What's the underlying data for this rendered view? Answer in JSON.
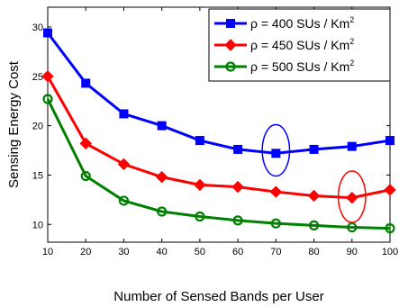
{
  "chart_data": {
    "type": "line",
    "title": "",
    "xlabel": "Number of Sensed Bands per User",
    "ylabel": "Sensing Energy Cost",
    "x": [
      10,
      20,
      30,
      40,
      50,
      60,
      70,
      80,
      90,
      100
    ],
    "xlim": [
      10,
      100
    ],
    "ylim": [
      8.2,
      32
    ],
    "xticks": [
      "10",
      "20",
      "30",
      "40",
      "50",
      "60",
      "70",
      "80",
      "90",
      "100"
    ],
    "yticks": [
      "10",
      "15",
      "20",
      "25",
      "30"
    ],
    "grid": false,
    "legend_position": "top-right",
    "series": [
      {
        "name_prefix": "ρ = 400 SUs / Km",
        "name_sup": "2",
        "color": "#0000ff",
        "marker": "square",
        "values": [
          29.4,
          24.3,
          21.2,
          20.0,
          18.5,
          17.6,
          17.2,
          17.6,
          17.9,
          18.5
        ]
      },
      {
        "name_prefix": "ρ = 450 SUs / Km",
        "name_sup": "2",
        "color": "#ff0000",
        "marker": "diamond",
        "values": [
          25.0,
          18.2,
          16.1,
          14.8,
          14.0,
          13.8,
          13.3,
          12.9,
          12.7,
          13.5
        ]
      },
      {
        "name_prefix": "ρ = 500 SUs / Km",
        "name_sup": "2",
        "color": "#008000",
        "marker": "circle",
        "values": [
          22.7,
          14.9,
          12.4,
          11.3,
          10.8,
          10.4,
          10.1,
          9.9,
          9.7,
          9.6
        ]
      }
    ],
    "annotations": [
      {
        "type": "ellipse",
        "color": "#0000ff",
        "x": 70,
        "y": 17.5,
        "rx_data": 3.6,
        "ry_data": 2.6
      },
      {
        "type": "ellipse",
        "color": "#ff0000",
        "x": 90,
        "y": 12.8,
        "rx_data": 3.6,
        "ry_data": 2.6
      }
    ]
  }
}
